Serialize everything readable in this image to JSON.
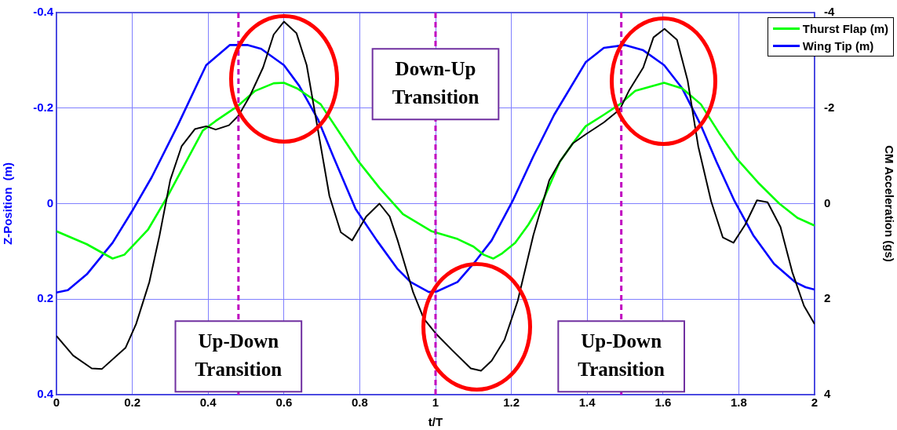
{
  "chart_data": {
    "type": "line",
    "xlabel": "t/T",
    "ylabel": "Z-Position  (m)",
    "y2label": "CM Acceleration (gs)",
    "xlim": [
      0,
      2
    ],
    "xticks": [
      0,
      0.2,
      0.4,
      0.6,
      0.8,
      1,
      1.2,
      1.4,
      1.6,
      1.8,
      2
    ],
    "ylim": [
      0.4,
      -0.4
    ],
    "yticks": [
      -0.4,
      -0.2,
      0,
      0.2,
      0.4
    ],
    "y2lim": [
      4,
      -4
    ],
    "y2ticks": [
      -4,
      -2,
      0,
      2,
      4
    ],
    "grid": true,
    "legend": "top right",
    "marker": "none",
    "line_style": "solid",
    "series": [
      {
        "name": "Thurst Flap (m)",
        "color": "#00ff00",
        "x": [
          0,
          0.08,
          0.148,
          0.179,
          0.241,
          0.29,
          0.338,
          0.386,
          0.42,
          0.476,
          0.524,
          0.573,
          0.6,
          0.635,
          0.697,
          0.752,
          0.797,
          0.852,
          0.914,
          0.99,
          1.058,
          1.1,
          1.127,
          1.152,
          1.176,
          1.21,
          1.245,
          1.286,
          1.328,
          1.362,
          1.396,
          1.444,
          1.486,
          1.527,
          1.603,
          1.651,
          1.7,
          1.748,
          1.796,
          1.851,
          1.907,
          1.955,
          2
        ],
        "values": [
          0.058,
          0.085,
          0.115,
          0.107,
          0.055,
          -0.011,
          -0.082,
          -0.153,
          -0.173,
          -0.203,
          -0.236,
          -0.252,
          -0.253,
          -0.241,
          -0.208,
          -0.142,
          -0.088,
          -0.033,
          0.022,
          0.058,
          0.074,
          0.09,
          0.107,
          0.115,
          0.104,
          0.082,
          0.044,
          -0.011,
          -0.088,
          -0.126,
          -0.162,
          -0.186,
          -0.208,
          -0.236,
          -0.253,
          -0.241,
          -0.208,
          -0.148,
          -0.093,
          -0.044,
          0,
          0.03,
          0.046
        ]
      },
      {
        "name": "Wing Tip (m)",
        "color": "#0000ff",
        "x": [
          0,
          0.03,
          0.08,
          0.148,
          0.203,
          0.251,
          0.32,
          0.395,
          0.457,
          0.505,
          0.54,
          0.6,
          0.64,
          0.69,
          0.73,
          0.789,
          0.845,
          0.9,
          0.934,
          0.982,
          1.003,
          1.058,
          1.106,
          1.148,
          1.203,
          1.258,
          1.313,
          1.396,
          1.444,
          1.5,
          1.548,
          1.603,
          1.651,
          1.7,
          1.741,
          1.789,
          1.838,
          1.893,
          1.948,
          1.976,
          2
        ],
        "values": [
          0.186,
          0.181,
          0.148,
          0.082,
          0.011,
          -0.055,
          -0.164,
          -0.29,
          -0.332,
          -0.332,
          -0.324,
          -0.29,
          -0.247,
          -0.176,
          -0.099,
          0.011,
          0.077,
          0.137,
          0.164,
          0.185,
          0.184,
          0.164,
          0.12,
          0.077,
          -0.005,
          -0.099,
          -0.186,
          -0.296,
          -0.326,
          -0.332,
          -0.321,
          -0.29,
          -0.241,
          -0.164,
          -0.088,
          -0.005,
          0.066,
          0.126,
          0.164,
          0.175,
          0.18
        ]
      },
      {
        "color": "#000000",
        "axis": "y2",
        "x": [
          0,
          0.044,
          0.093,
          0.12,
          0.182,
          0.21,
          0.245,
          0.272,
          0.3,
          0.33,
          0.365,
          0.395,
          0.42,
          0.455,
          0.48,
          0.51,
          0.545,
          0.573,
          0.6,
          0.633,
          0.66,
          0.69,
          0.72,
          0.75,
          0.78,
          0.817,
          0.852,
          0.879,
          0.9,
          0.941,
          0.969,
          1.003,
          1.044,
          1.093,
          1.12,
          1.148,
          1.182,
          1.217,
          1.258,
          1.3,
          1.328,
          1.362,
          1.396,
          1.444,
          1.486,
          1.51,
          1.548,
          1.575,
          1.604,
          1.637,
          1.665,
          1.693,
          1.727,
          1.758,
          1.786,
          1.817,
          1.848,
          1.876,
          1.91,
          1.941,
          1.972,
          2
        ],
        "values": [
          2.77,
          3.18,
          3.45,
          3.46,
          3.02,
          2.52,
          1.64,
          0.66,
          -0.49,
          -1.2,
          -1.56,
          -1.62,
          -1.55,
          -1.64,
          -1.84,
          -2.25,
          -2.85,
          -3.54,
          -3.81,
          -3.57,
          -2.9,
          -1.53,
          -0.16,
          0.6,
          0.77,
          0.27,
          0,
          0.27,
          0.77,
          1.86,
          2.41,
          2.74,
          3.07,
          3.45,
          3.5,
          3.29,
          2.85,
          2.03,
          0.66,
          -0.49,
          -0.88,
          -1.26,
          -1.45,
          -1.7,
          -1.97,
          -2.36,
          -2.85,
          -3.48,
          -3.66,
          -3.43,
          -2.58,
          -1.2,
          -0.05,
          0.71,
          0.82,
          0.44,
          -0.07,
          -0.03,
          0.49,
          1.43,
          2.14,
          2.52
        ]
      }
    ],
    "ref_lines": [
      {
        "axis": "x",
        "value": 0.48,
        "color": "#c000c0",
        "line_style": "dashed"
      },
      {
        "axis": "x",
        "value": 1,
        "color": "#c000c0",
        "line_style": "dashed"
      },
      {
        "axis": "x",
        "value": 1.49,
        "color": "#c000c0",
        "line_style": "dashed"
      }
    ],
    "annotations": [
      {
        "text": "Up-Down Transition",
        "x": 0.48,
        "y": 0.32
      },
      {
        "text": "Down-Up Transition",
        "x": 1,
        "y": -0.25
      },
      {
        "text": "Up-Down Transition",
        "x": 1.49,
        "y": 0.32
      }
    ]
  }
}
